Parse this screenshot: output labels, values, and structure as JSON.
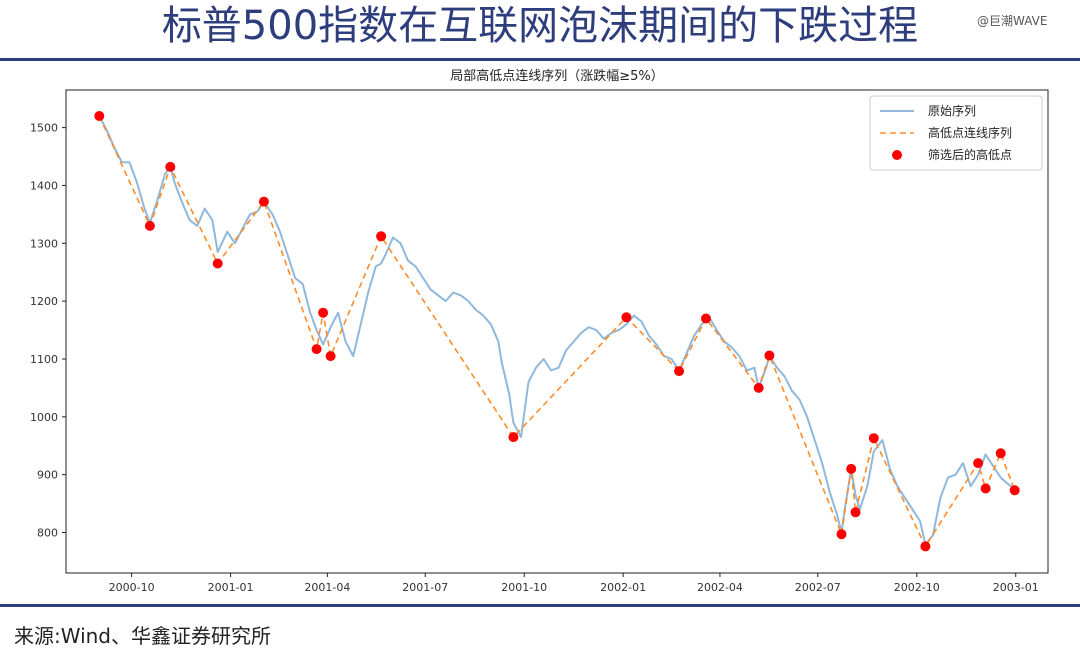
{
  "header": {
    "title": "标普500指数在互联网泡沫期间的下跌过程",
    "watermark": "@巨潮WAVE"
  },
  "footer": {
    "source": "来源:Wind、华鑫证券研究所"
  },
  "colors": {
    "brand": "#2e3d7c",
    "raw_series": "#8fb8dc",
    "zigzag": "#ff8c2a",
    "points": "#ff0000"
  },
  "chart_data": {
    "type": "line",
    "title": "局部高低点连线序列（涨跌幅≥5%）",
    "xlabel": "",
    "ylabel": "",
    "xlim": [
      "2000-08-01",
      "2003-01-31"
    ],
    "ylim": [
      730,
      1565
    ],
    "yticks": [
      800,
      900,
      1000,
      1100,
      1200,
      1300,
      1400,
      1500
    ],
    "xticks": [
      "2000-10",
      "2001-01",
      "2001-04",
      "2001-07",
      "2001-10",
      "2002-01",
      "2002-04",
      "2002-07",
      "2002-10",
      "2003-01"
    ],
    "grid": false,
    "legend_position": "top-right",
    "legend": [
      "原始序列",
      "高低点连线序列",
      "筛选后的高低点"
    ],
    "series": [
      {
        "name": "原始序列",
        "style": "solid",
        "x": [
          "2000-09-01",
          "2000-09-08",
          "2000-09-15",
          "2000-09-22",
          "2000-09-29",
          "2000-10-06",
          "2000-10-13",
          "2000-10-18",
          "2000-10-25",
          "2000-11-01",
          "2000-11-06",
          "2000-11-10",
          "2000-11-17",
          "2000-11-24",
          "2000-12-01",
          "2000-12-08",
          "2000-12-15",
          "2000-12-20",
          "2000-12-29",
          "2001-01-05",
          "2001-01-12",
          "2001-01-19",
          "2001-01-26",
          "2001-02-01",
          "2001-02-09",
          "2001-02-16",
          "2001-02-23",
          "2001-03-02",
          "2001-03-09",
          "2001-03-16",
          "2001-03-22",
          "2001-03-28",
          "2001-04-04",
          "2001-04-11",
          "2001-04-18",
          "2001-04-25",
          "2001-05-02",
          "2001-05-09",
          "2001-05-16",
          "2001-05-21",
          "2001-05-25",
          "2001-06-01",
          "2001-06-08",
          "2001-06-15",
          "2001-06-22",
          "2001-06-29",
          "2001-07-06",
          "2001-07-13",
          "2001-07-20",
          "2001-07-27",
          "2001-08-03",
          "2001-08-10",
          "2001-08-17",
          "2001-08-24",
          "2001-08-31",
          "2001-09-07",
          "2001-09-10",
          "2001-09-17",
          "2001-09-21",
          "2001-09-28",
          "2001-10-05",
          "2001-10-12",
          "2001-10-19",
          "2001-10-26",
          "2001-11-02",
          "2001-11-09",
          "2001-11-16",
          "2001-11-23",
          "2001-11-30",
          "2001-12-07",
          "2001-12-14",
          "2001-12-21",
          "2001-12-28",
          "2002-01-04",
          "2002-01-11",
          "2002-01-18",
          "2002-01-25",
          "2002-02-01",
          "2002-02-08",
          "2002-02-15",
          "2002-02-22",
          "2002-03-01",
          "2002-03-08",
          "2002-03-15",
          "2002-03-19",
          "2002-03-22",
          "2002-03-29",
          "2002-04-05",
          "2002-04-12",
          "2002-04-19",
          "2002-04-26",
          "2002-05-03",
          "2002-05-07",
          "2002-05-14",
          "2002-05-17",
          "2002-05-24",
          "2002-05-31",
          "2002-06-07",
          "2002-06-14",
          "2002-06-21",
          "2002-06-28",
          "2002-07-05",
          "2002-07-12",
          "2002-07-19",
          "2002-07-23",
          "2002-07-26",
          "2002-08-01",
          "2002-08-05",
          "2002-08-09",
          "2002-08-16",
          "2002-08-22",
          "2002-08-30",
          "2002-09-06",
          "2002-09-13",
          "2002-09-20",
          "2002-09-27",
          "2002-10-04",
          "2002-10-09",
          "2002-10-16",
          "2002-10-23",
          "2002-10-30",
          "2002-11-06",
          "2002-11-13",
          "2002-11-20",
          "2002-11-27",
          "2002-12-04",
          "2002-12-11",
          "2002-12-18",
          "2002-12-24",
          "2002-12-31"
        ],
        "values": [
          1520,
          1495,
          1465,
          1440,
          1440,
          1405,
          1360,
          1335,
          1375,
          1420,
          1432,
          1405,
          1370,
          1340,
          1330,
          1360,
          1340,
          1285,
          1320,
          1300,
          1325,
          1350,
          1355,
          1372,
          1350,
          1320,
          1280,
          1240,
          1230,
          1180,
          1150,
          1125,
          1155,
          1180,
          1130,
          1105,
          1160,
          1215,
          1260,
          1265,
          1280,
          1310,
          1300,
          1270,
          1260,
          1240,
          1220,
          1210,
          1200,
          1215,
          1210,
          1200,
          1185,
          1175,
          1160,
          1130,
          1095,
          1040,
          990,
          965,
          1060,
          1085,
          1100,
          1080,
          1085,
          1115,
          1130,
          1145,
          1155,
          1150,
          1135,
          1145,
          1150,
          1160,
          1175,
          1165,
          1140,
          1125,
          1105,
          1100,
          1080,
          1110,
          1140,
          1160,
          1168,
          1172,
          1150,
          1130,
          1120,
          1105,
          1080,
          1085,
          1050,
          1085,
          1105,
          1085,
          1070,
          1045,
          1030,
          1000,
          960,
          920,
          870,
          830,
          800,
          840,
          910,
          865,
          840,
          880,
          940,
          960,
          910,
          880,
          860,
          840,
          820,
          780,
          795,
          860,
          895,
          900,
          920,
          880,
          900,
          935,
          915,
          895,
          885,
          875
        ]
      },
      {
        "name": "高低点连线序列",
        "style": "dashed",
        "x": [
          "2000-09-01",
          "2000-10-18",
          "2000-11-06",
          "2000-12-20",
          "2001-02-01",
          "2001-03-22",
          "2001-03-28",
          "2001-04-04",
          "2001-05-21",
          "2001-09-21",
          "2002-01-04",
          "2002-02-22",
          "2002-03-19",
          "2002-05-07",
          "2002-05-17",
          "2002-07-23",
          "2002-08-01",
          "2002-08-05",
          "2002-08-22",
          "2002-10-09",
          "2002-11-27",
          "2002-12-04",
          "2002-12-18",
          "2002-12-31"
        ],
        "values": [
          1520,
          1330,
          1432,
          1265,
          1372,
          1117,
          1180,
          1105,
          1312,
          965,
          1172,
          1079,
          1170,
          1050,
          1106,
          797,
          910,
          835,
          963,
          776,
          920,
          876,
          937,
          873
        ]
      }
    ],
    "points": {
      "name": "筛选后的高低点",
      "x": [
        "2000-09-01",
        "2000-10-18",
        "2000-11-06",
        "2000-12-20",
        "2001-02-01",
        "2001-03-22",
        "2001-03-28",
        "2001-04-04",
        "2001-05-21",
        "2001-09-21",
        "2002-01-04",
        "2002-02-22",
        "2002-03-19",
        "2002-05-07",
        "2002-05-17",
        "2002-07-23",
        "2002-08-01",
        "2002-08-05",
        "2002-08-22",
        "2002-10-09",
        "2002-11-27",
        "2002-12-04",
        "2002-12-18",
        "2002-12-31"
      ],
      "values": [
        1520,
        1330,
        1432,
        1265,
        1372,
        1117,
        1180,
        1105,
        1312,
        965,
        1172,
        1079,
        1170,
        1050,
        1106,
        797,
        910,
        835,
        963,
        776,
        920,
        876,
        937,
        873
      ]
    }
  }
}
